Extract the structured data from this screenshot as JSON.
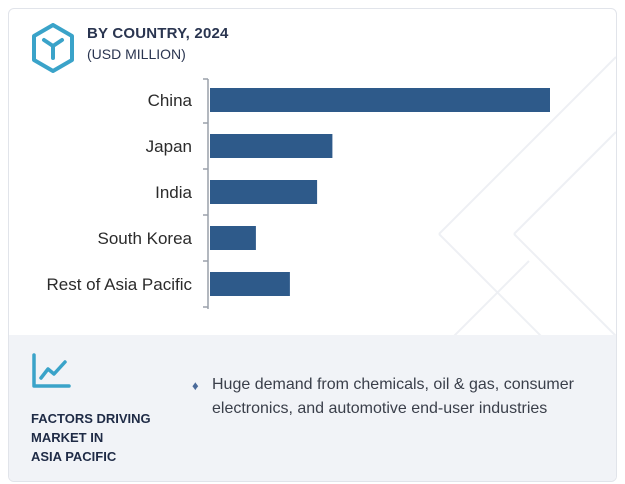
{
  "header": {
    "title": "BY COUNTRY, 2024",
    "subtitle": "(USD MILLION)"
  },
  "chart_data": {
    "type": "bar",
    "orientation": "horizontal",
    "categories": [
      "China",
      "Japan",
      "India",
      "South Korea",
      "Rest of Asia Pacific"
    ],
    "values": [
      100,
      36,
      31.5,
      13.5,
      23.5
    ],
    "xlim": [
      0,
      100
    ],
    "grid": false,
    "bar_color": "#2e5a8a"
  },
  "factors": {
    "title": "FACTORS DRIVING\nMARKET IN\nASIA PACIFIC",
    "bullet_symbol": "♦",
    "items": [
      "Huge demand from chemicals, oil & gas, consumer electronics, and automotive end-user industries"
    ]
  },
  "colors": {
    "accent": "#3aa3c9",
    "bar": "#2e5a8a",
    "panel": "#f1f3f7",
    "heading": "#2a3550"
  },
  "icons": {
    "logo": "cube-logo-icon",
    "trend": "trend-chart-icon"
  }
}
